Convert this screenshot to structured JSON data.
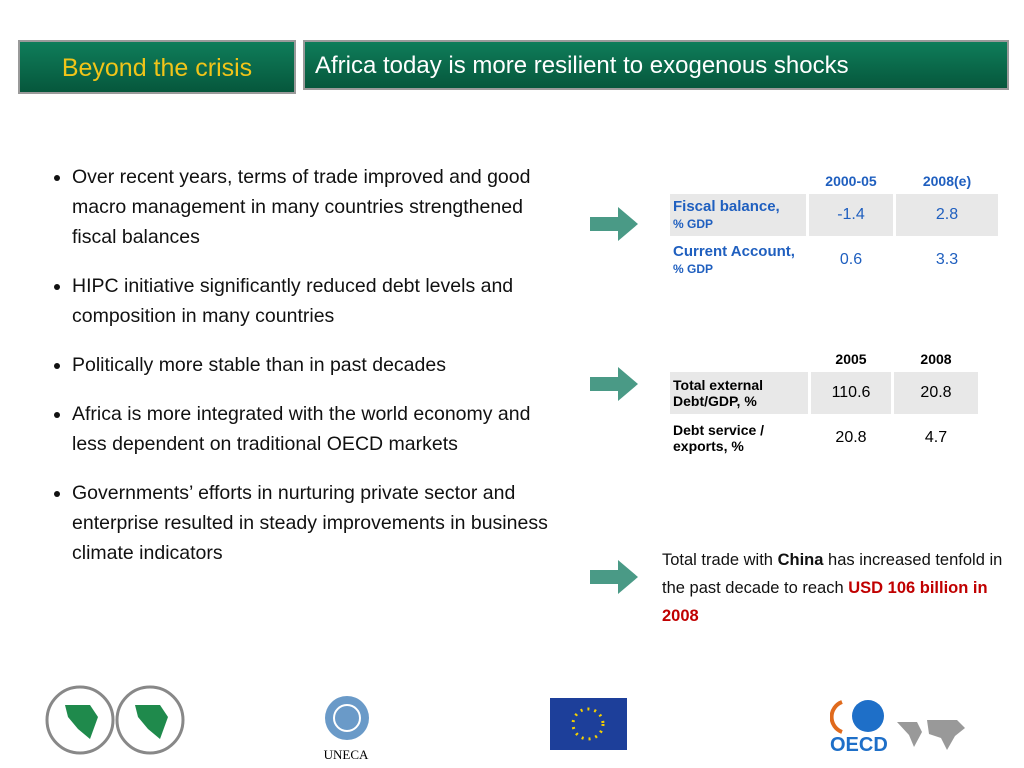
{
  "header": {
    "section": "Beyond the crisis",
    "title": "Africa today is more resilient to exogenous shocks"
  },
  "bullets": [
    "Over recent years, terms of trade improved and good macro management in many countries strengthened fiscal balances",
    "HIPC initiative significantly reduced debt levels and composition in many countries",
    "Politically more stable than in past decades",
    "Africa is more integrated with the world economy and less dependent on traditional OECD markets",
    "Governments’ efforts in nurturing private sector and enterprise resulted in steady improvements in business climate indicators"
  ],
  "table1": {
    "columns": [
      "2000-05",
      "2008(e)"
    ],
    "rows": [
      {
        "label": "Fiscal balance,",
        "unit": "% GDP",
        "values": [
          -1.4,
          2.8
        ]
      },
      {
        "label": "Current Account,",
        "unit": "% GDP",
        "values": [
          0.6,
          3.3
        ]
      }
    ]
  },
  "table2": {
    "columns": [
      "2005",
      "2008"
    ],
    "rows": [
      {
        "label": "Total external Debt/GDP, %",
        "values": [
          110.6,
          20.8
        ]
      },
      {
        "label": "Debt service / exports, %",
        "values": [
          20.8,
          4.7
        ]
      }
    ]
  },
  "note": {
    "text1": "Total trade with",
    "bold": "China",
    "text2": "has increased tenfold in the past decade to reach",
    "highlight": "USD 106 billion in 2008"
  },
  "logos": {
    "uneca": "UNECA",
    "oecd": "OECD"
  }
}
